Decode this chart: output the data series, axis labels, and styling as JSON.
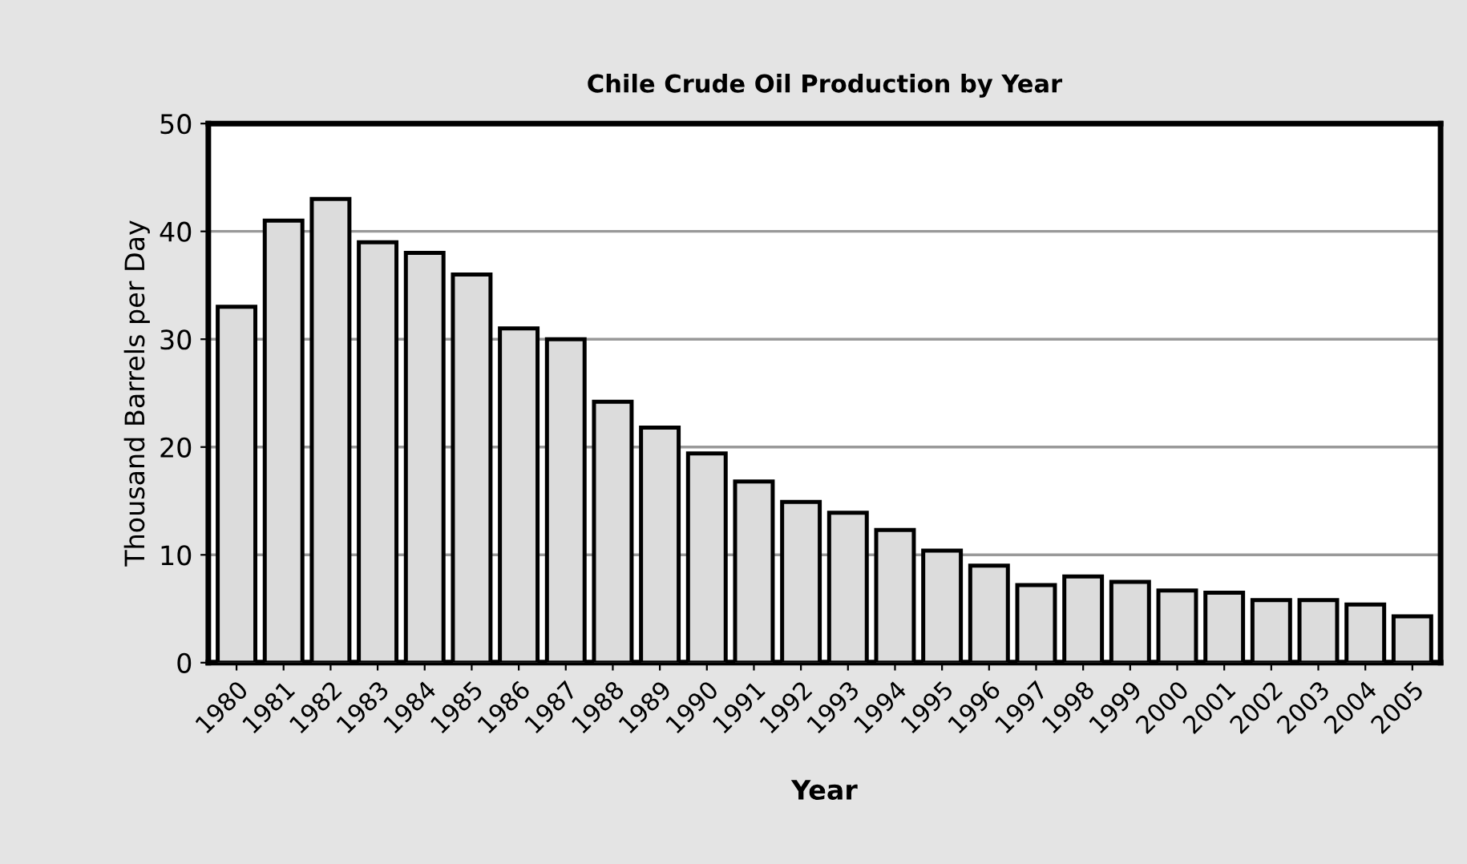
{
  "chart_data": {
    "type": "bar",
    "title": "Chile Crude Oil Production by Year",
    "xlabel": "Year",
    "ylabel": "Thousand Barrels per Day",
    "categories": [
      "1980",
      "1981",
      "1982",
      "1983",
      "1984",
      "1985",
      "1986",
      "1987",
      "1988",
      "1989",
      "1990",
      "1991",
      "1992",
      "1993",
      "1994",
      "1995",
      "1996",
      "1997",
      "1998",
      "1999",
      "2000",
      "2001",
      "2002",
      "2003",
      "2004",
      "2005"
    ],
    "values": [
      33,
      41,
      43,
      39,
      38,
      36,
      31,
      30,
      24.2,
      21.8,
      19.4,
      16.8,
      14.9,
      13.9,
      12.3,
      10.4,
      9.0,
      7.2,
      8.0,
      7.5,
      6.7,
      6.5,
      5.8,
      5.8,
      5.4,
      4.3
    ],
    "color": "#dcdcdc",
    "ylim": [
      0,
      50
    ],
    "yticks": [
      0,
      10,
      20,
      30,
      40,
      50
    ],
    "grid": "y"
  }
}
